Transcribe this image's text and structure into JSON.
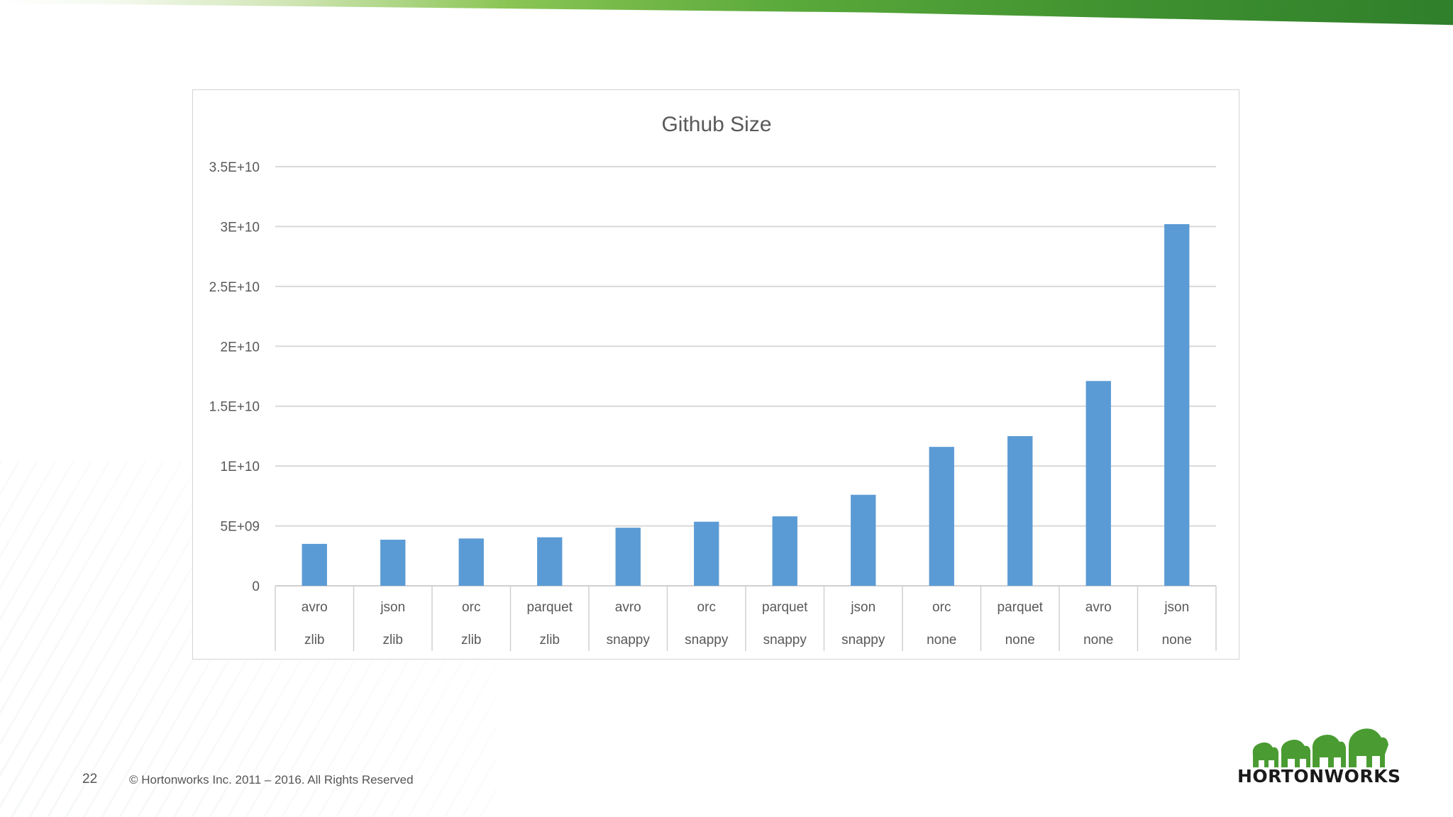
{
  "slide": {
    "page_number": "22",
    "copyright": "© Hortonworks Inc. 2011 – 2016. All Rights Reserved",
    "logo_text": "HORTONWORKS",
    "accent_green": "#4a9c32"
  },
  "chart_data": {
    "type": "bar",
    "title": "Github Size",
    "categories": [
      [
        "avro",
        "zlib"
      ],
      [
        "json",
        "zlib"
      ],
      [
        "orc",
        "zlib"
      ],
      [
        "parquet",
        "zlib"
      ],
      [
        "avro",
        "snappy"
      ],
      [
        "orc",
        "snappy"
      ],
      [
        "parquet",
        "snappy"
      ],
      [
        "json",
        "snappy"
      ],
      [
        "orc",
        "none"
      ],
      [
        "parquet",
        "none"
      ],
      [
        "avro",
        "none"
      ],
      [
        "json",
        "none"
      ]
    ],
    "values": [
      3500000000,
      3850000000,
      3950000000,
      4050000000,
      4850000000,
      5350000000,
      5800000000,
      7600000000,
      11600000000,
      12500000000,
      17100000000,
      30200000000
    ],
    "ylim": [
      0,
      35000000000
    ],
    "yticks": [
      0,
      5000000000,
      10000000000,
      15000000000,
      20000000000,
      25000000000,
      30000000000,
      35000000000
    ],
    "ytick_labels": [
      "0",
      "5E+09",
      "1E+10",
      "1.5E+10",
      "2E+10",
      "2.5E+10",
      "3E+10",
      "3.5E+10"
    ],
    "bar_color": "#5b9bd5",
    "grid": true
  }
}
